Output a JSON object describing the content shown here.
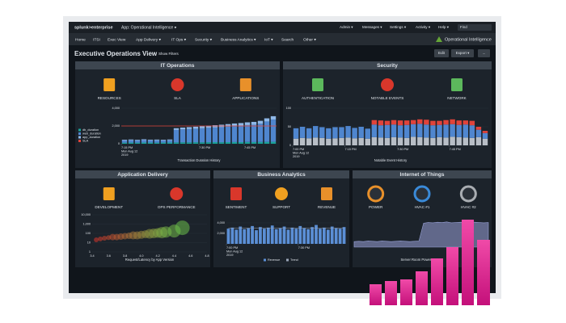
{
  "topbar": {
    "brand": "splunk>enterprise",
    "app": "App: Operational Intelligence ▾",
    "menus": [
      "Admin ▾",
      "Messages ▾",
      "Settings ▾",
      "Activity ▾",
      "Help ▾"
    ],
    "find": "Find"
  },
  "nav": {
    "items": [
      "Home",
      "ITSI",
      "Exec View",
      "App Delivery ▾",
      "IT Ops ▾",
      "Security ▾",
      "Business Analytics ▾",
      "IoT ▾",
      "Search",
      "Other ▾"
    ],
    "app_title": "Operational Intelligence"
  },
  "header": {
    "title": "Executive Operations View",
    "filters": "Show Filters",
    "buttons": [
      "Edit",
      "Export ▾",
      "..."
    ]
  },
  "panels": [
    {
      "title": "IT Operations",
      "icons": [
        "RESOURCES",
        "SLA",
        "APPLICATIONS"
      ],
      "chart": {
        "type": "stacked_bar",
        "caption": "Transaction Duration History",
        "ylim": [
          0,
          4000
        ],
        "yticks": [
          {
            "value": 4000,
            "label": "4,000"
          },
          {
            "value": 2000,
            "label": "2,000"
          },
          0
        ],
        "series": [
          {
            "name": "db_duration",
            "color": "#1aa39a",
            "values": [
              120,
              130,
              120,
              140,
              130,
              120,
              130,
              140,
              150,
              160,
              150,
              170,
              160,
              170,
              180,
              170,
              180,
              190,
              180,
              200,
              190,
              200,
              210,
              220
            ]
          },
          {
            "name": "web_duration",
            "color": "#4f86cf",
            "values": [
              250,
              260,
              240,
              270,
              250,
              260,
              240,
              250,
              1400,
              1450,
              1500,
              1520,
              1580,
              1620,
              1650,
              1700,
              1750,
              1800,
              1850,
              1900,
              1950,
              2050,
              2300,
              2500
            ]
          },
          {
            "name": "app_duration",
            "color": "#8fb8e8",
            "values": [
              80,
              90,
              80,
              90,
              80,
              90,
              80,
              90,
              200,
              210,
              220,
              230,
              240,
              250,
              260,
              270,
              280,
              290,
              300,
              310,
              320,
              330,
              350,
              380
            ]
          }
        ],
        "lines": [
          {
            "name": "SLA",
            "color": "#e0433a",
            "value": 2000
          }
        ],
        "xticks": [
          {
            "value": 0,
            "label": "7:15 PM"
          },
          {
            "value": 12,
            "label": "7:30 PM"
          },
          {
            "value": 19,
            "label": "7:45 PM"
          }
        ],
        "date_label": [
          "Mon Aug 12",
          "2019"
        ]
      }
    },
    {
      "title": "Security",
      "icons": [
        "AUTHENTICATION",
        "NOTABLE EVENTS",
        "NETWORK"
      ],
      "chart": {
        "type": "stacked_bar",
        "caption": "Notable Event History",
        "ylim": [
          0,
          100
        ],
        "yticks": [
          100,
          50,
          0
        ],
        "series": [
          {
            "color": "#b8bec6",
            "values": [
              18,
              20,
              19,
              21,
              20,
              18,
              19,
              20,
              21,
              19,
              20,
              18,
              22,
              21,
              20,
              22,
              21,
              20,
              23,
              22,
              21,
              20,
              22,
              21,
              23,
              22,
              21,
              20,
              22,
              18
            ]
          },
          {
            "color": "#4f86cf",
            "values": [
              28,
              30,
              27,
              31,
              29,
              28,
              30,
              29,
              31,
              28,
              30,
              27,
              34,
              33,
              35,
              34,
              33,
              35,
              34,
              36,
              35,
              34,
              33,
              35,
              34,
              33,
              35,
              34,
              20,
              15
            ]
          },
          {
            "color": "#e0433a",
            "values": [
              0,
              0,
              0,
              0,
              0,
              0,
              0,
              0,
              0,
              0,
              0,
              0,
              12,
              13,
              11,
              12,
              13,
              12,
              11,
              12,
              13,
              12,
              11,
              12,
              13,
              12,
              11,
              12,
              8,
              6
            ]
          }
        ],
        "xticks": [
          {
            "value": 0,
            "label": "7:00 PM"
          },
          {
            "value": 8,
            "label": "7:15 PM"
          },
          {
            "value": 16,
            "label": "7:30 PM"
          },
          {
            "value": 24,
            "label": "7:45 PM"
          }
        ],
        "date_label": [
          "Mon Aug 12",
          "2019"
        ]
      }
    },
    {
      "title": "Application Delivery",
      "icons": [
        "DEVELOPMENT",
        "OPS PERFORMANCE"
      ],
      "chart": {
        "type": "scatter",
        "caption": "Request/Latency by App Version",
        "log_y": true,
        "xlim": [
          3.4,
          4.8
        ],
        "ylim": [
          1,
          10000
        ],
        "xticks": [
          3.4,
          3.6,
          3.8,
          {
            "value": 4,
            "label": "4.0"
          },
          4.2,
          4.4,
          4.6,
          4.8
        ],
        "yticks": [
          {
            "value": 10000,
            "label": "10,000"
          },
          {
            "value": 1000,
            "label": "1,000"
          },
          100,
          10,
          1
        ],
        "color_scale": [
          "#d9372b",
          "#6cc04a"
        ],
        "x": [
          3.45,
          3.5,
          3.55,
          3.6,
          3.65,
          3.7,
          3.75,
          3.8,
          3.85,
          3.9,
          3.95,
          4.0,
          4.05,
          4.1,
          4.15,
          4.2,
          4.25,
          4.3,
          4.4,
          4.5
        ],
        "y": [
          20,
          25,
          30,
          35,
          40,
          40,
          45,
          50,
          55,
          60,
          60,
          70,
          80,
          90,
          100,
          110,
          120,
          140,
          180,
          400
        ],
        "size": [
          3,
          3,
          3,
          3,
          4,
          4,
          4,
          4,
          4,
          5,
          5,
          5,
          5,
          6,
          6,
          6,
          7,
          7,
          8,
          9
        ]
      }
    },
    {
      "title": "Business Analytics",
      "icons": [
        "SENTIMENT",
        "SUPPORT",
        "REVENUE"
      ],
      "chart": {
        "type": "bar",
        "ylim": [
          0,
          4000
        ],
        "yticks": [
          {
            "value": 4000,
            "label": "4,000"
          },
          {
            "value": 2000,
            "label": "2,000"
          }
        ],
        "series": [
          {
            "name": "Revenue",
            "color": "#5b8fd6",
            "values": [
              2900,
              3100,
              2700,
              3300,
              2800,
              3000,
              3400,
              2600,
              3200,
              2900,
              3100,
              3500,
              2800,
              3000,
              3300,
              2700,
              3100,
              2900,
              3400,
              3000,
              2800,
              3200,
              3600,
              2900,
              3100,
              2700,
              3300,
              3000,
              2900,
              3200
            ]
          },
          {
            "name": "Trend",
            "color": "#9aa6b8",
            "kind": "line",
            "values": [
              3000,
              3000,
              3000,
              3000,
              3000,
              3000,
              3000,
              3000,
              3000,
              3000,
              3000,
              3000,
              3000,
              3000,
              3000,
              3000,
              3000,
              3000,
              3000,
              3000,
              3000,
              3000,
              3000,
              3000,
              3000,
              3000,
              3000,
              3000,
              3000,
              3000
            ]
          }
        ],
        "xticks": [
          {
            "value": 0,
            "label": "7:00 PM"
          },
          {
            "value": 18,
            "label": "7:30 PM"
          }
        ],
        "date_label": [
          "Mon Aug 12",
          "2019"
        ]
      }
    },
    {
      "title": "Internet of Things",
      "icons": [
        "POWER",
        "HVAC #1",
        "HVAC #2"
      ],
      "chart": {
        "type": "area",
        "caption": "Server Room Power Usage",
        "ylim": [
          0,
          100
        ],
        "color": "#9aa3d9",
        "values": [
          18,
          19,
          18,
          20,
          19,
          18,
          20,
          19,
          18,
          19,
          20,
          19,
          18,
          19,
          20,
          78,
          80,
          79,
          81,
          80,
          82,
          79,
          80,
          81,
          80,
          82,
          81,
          80,
          79,
          80
        ]
      }
    }
  ]
}
